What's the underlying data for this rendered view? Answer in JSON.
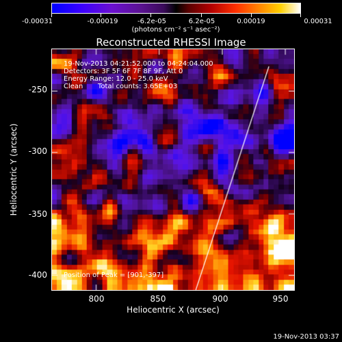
{
  "colorbar": {
    "tick_labels": [
      "-0.00031",
      "-0.00019",
      "-6.2e-05",
      "6.2e-05",
      "0.00019",
      "0.00031"
    ],
    "tick_values": [
      -0.00031,
      -0.00019,
      -6.2e-05,
      6.2e-05,
      0.00019,
      0.00031
    ],
    "units": "(photons cm⁻² s⁻¹ asec⁻²)",
    "colors": [
      "#0000ff",
      "#6b10d0",
      "#000000",
      "#b30000",
      "#ff8a00",
      "#ffffff"
    ]
  },
  "chart_data": {
    "type": "heatmap",
    "title": "Reconstructed RHESSI Image",
    "xlabel": "Heliocentric X (arcsec)",
    "ylabel": "Heliocentric Y (arcsec)",
    "xlim": [
      765,
      957
    ],
    "ylim": [
      -412,
      -216
    ],
    "x_ticks": [
      800,
      850,
      900,
      950
    ],
    "y_ticks": [
      -250,
      -300,
      -350,
      -400
    ],
    "x_tick_labels": [
      "800",
      "850",
      "900",
      "950"
    ],
    "y_tick_labels": [
      "-250",
      "-300",
      "-350",
      "-400"
    ],
    "value_range": [
      -0.00031,
      0.00031
    ],
    "limb_line": {
      "x": [
        879,
        937
      ],
      "y": [
        -412,
        -230
      ]
    },
    "annotations": {
      "time_range": "19-Nov-2013 04:21:52.000 to 04:24:04.000",
      "detectors": "Detectors: 3F 5F 6F 7F 8F 9F, Att 0",
      "energy_range": "Energy Range: 12.0 - 25.0 keV",
      "method": "Clean",
      "total_counts": "Total counts: 3.65E+03",
      "peak_position": "Position of Peak = [901,-397]"
    }
  },
  "footer": {
    "date": "19-Nov-2013 03:37"
  }
}
